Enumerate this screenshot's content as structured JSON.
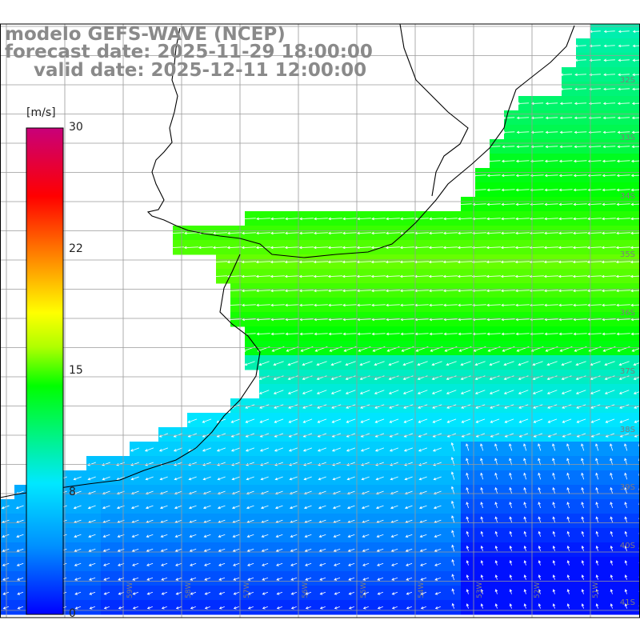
{
  "header": {
    "model": "modelo GEFS-WAVE (NCEP)",
    "forecast_date": "forecast date: 2025-11-29 18:00:00",
    "valid_date": "valid date: 2025-12-11 12:00:00"
  },
  "colorbar": {
    "unit": "[m/s]",
    "ticks": [
      "30",
      "22",
      "15",
      "8",
      "0"
    ],
    "tick_values": [
      30,
      22,
      15,
      8,
      0
    ],
    "min": 0,
    "max": 30,
    "colors": [
      "#0000ff",
      "#0090ff",
      "#00e8ff",
      "#00ff00",
      "#ffff00",
      "#ff8000",
      "#ff0000",
      "#c8007a"
    ]
  },
  "grid": {
    "lat_labels": [
      "32S",
      "33S",
      "34S",
      "35S",
      "36S",
      "37S",
      "38S",
      "39S",
      "40S",
      "41S"
    ],
    "lon_labels": [
      "59W",
      "58W",
      "57W",
      "56W",
      "55W",
      "54W",
      "53W",
      "52W",
      "51W"
    ]
  },
  "colors": {
    "land": "#ffffff",
    "coast": "#000000",
    "gridline": "#9a9a9a",
    "arrows": "#ffffff",
    "title": "#8a8a8a"
  }
}
